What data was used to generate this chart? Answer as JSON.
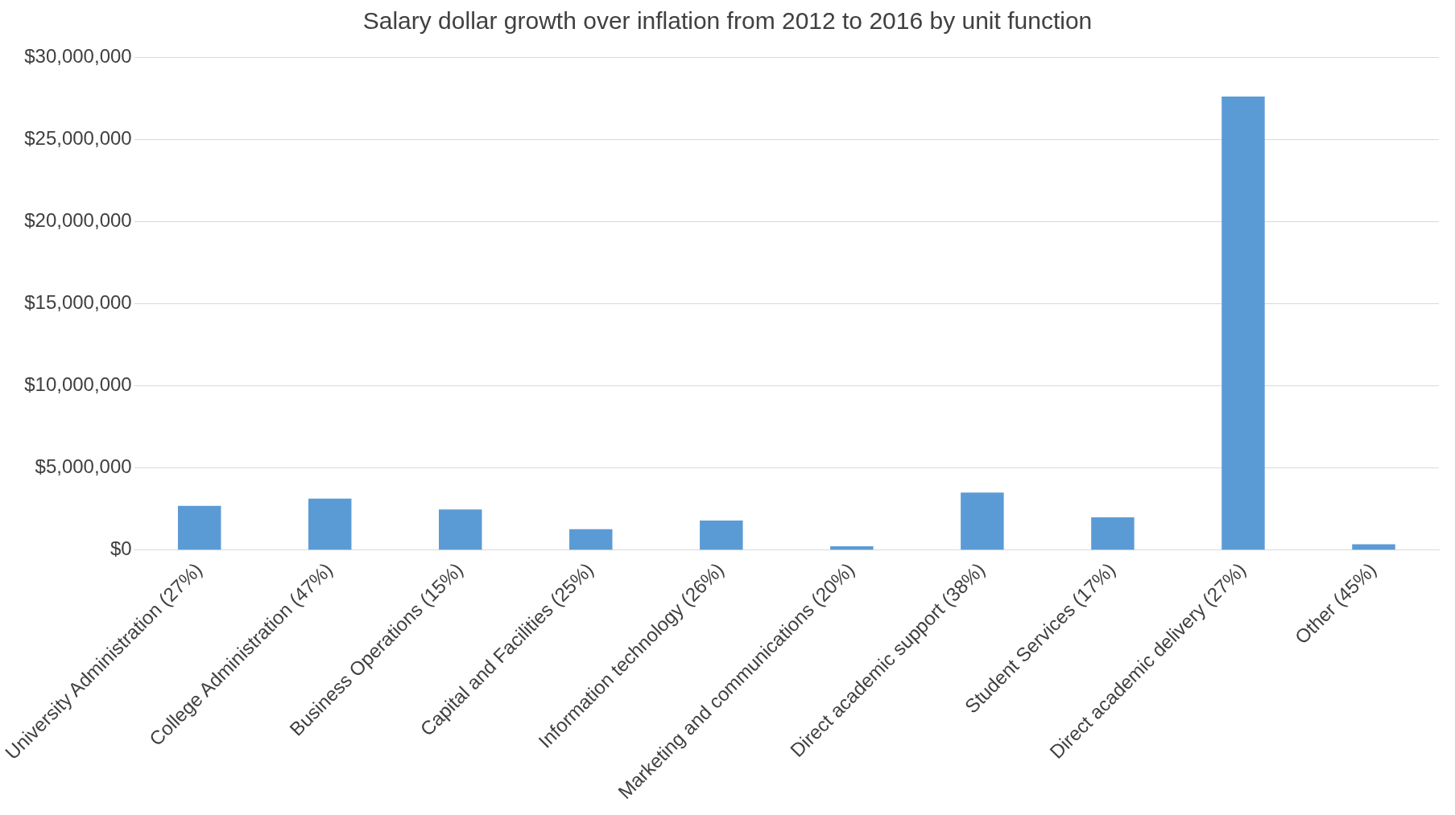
{
  "chart_data": {
    "type": "bar",
    "title": "Salary dollar growth over inflation from 2012 to 2016 by unit function",
    "categories": [
      "University Administration (27%)",
      "College Administration (47%)",
      "Business Operations (15%)",
      "Capital and Facilities (25%)",
      "Information technology (26%)",
      "Marketing and communications (20%)",
      "Direct academic support (38%)",
      "Student Services (17%)",
      "Direct academic delivery (27%)",
      "Other (45%)"
    ],
    "values": [
      2700000,
      3130000,
      2470000,
      1270000,
      1800000,
      240000,
      3500000,
      2000000,
      27600000,
      360000
    ],
    "color": "#5b9bd5",
    "ylim": [
      0,
      30000000
    ],
    "yticks": [
      {
        "value": 0,
        "label": "$0"
      },
      {
        "value": 5000000,
        "label": "$5,000,000"
      },
      {
        "value": 10000000,
        "label": "$10,000,000"
      },
      {
        "value": 15000000,
        "label": "$15,000,000"
      },
      {
        "value": 20000000,
        "label": "$20,000,000"
      },
      {
        "value": 25000000,
        "label": "$25,000,000"
      },
      {
        "value": 30000000,
        "label": "$30,000,000"
      }
    ],
    "grid": "y"
  }
}
